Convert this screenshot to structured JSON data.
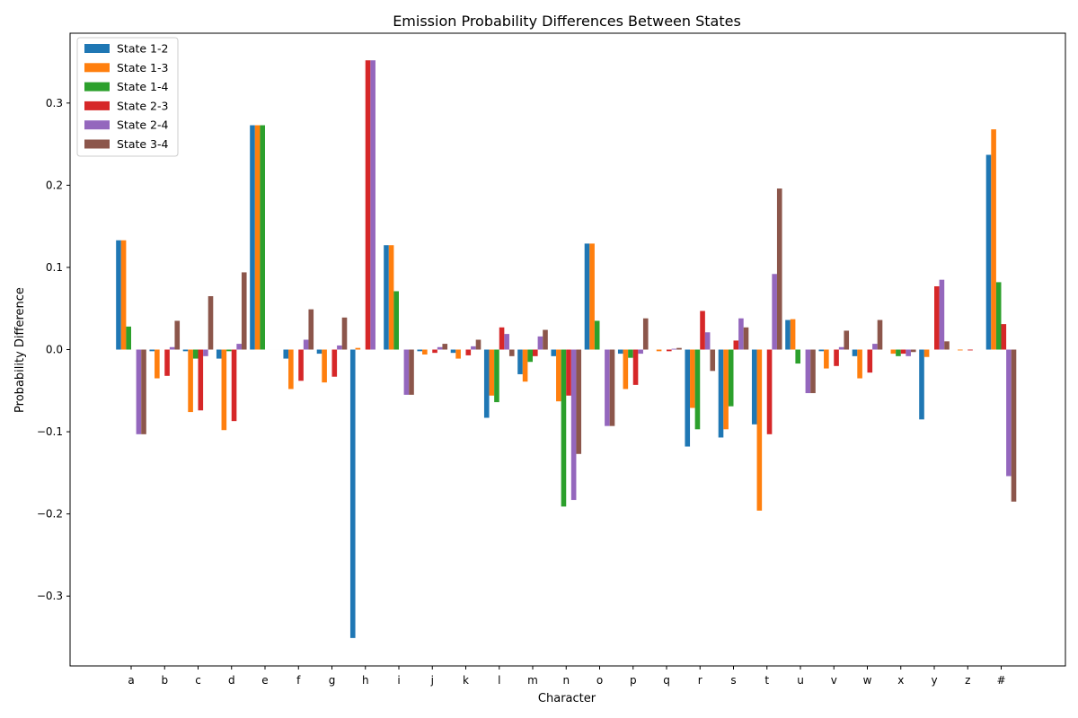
{
  "chart_data": {
    "type": "bar",
    "title": "Emission Probability Differences Between States",
    "xlabel": "Character",
    "ylabel": "Probability Difference",
    "ylim": [
      -0.385,
      0.385
    ],
    "yticks": [
      -0.3,
      -0.2,
      -0.1,
      0.0,
      0.1,
      0.2,
      0.3
    ],
    "ytick_labels": [
      "−0.3",
      "−0.2",
      "−0.1",
      "0.0",
      "0.1",
      "0.2",
      "0.3"
    ],
    "grid": false,
    "legend_position": "top-left",
    "categories": [
      "a",
      "b",
      "c",
      "d",
      "e",
      "f",
      "g",
      "h",
      "i",
      "j",
      "k",
      "l",
      "m",
      "n",
      "o",
      "p",
      "q",
      "r",
      "s",
      "t",
      "u",
      "v",
      "w",
      "x",
      "y",
      "z",
      "#"
    ],
    "series": [
      {
        "name": "State 1-2",
        "color": "#1f77b4",
        "values": [
          0.133,
          -0.002,
          -0.002,
          -0.011,
          0.273,
          -0.011,
          -0.005,
          -0.351,
          0.127,
          -0.002,
          -0.004,
          -0.083,
          -0.03,
          -0.008,
          0.129,
          -0.005,
          0.0,
          -0.118,
          -0.107,
          -0.091,
          0.036,
          -0.002,
          -0.008,
          0.0,
          -0.085,
          0.0,
          0.237
        ]
      },
      {
        "name": "State 1-3",
        "color": "#ff7f0e",
        "values": [
          0.133,
          -0.035,
          -0.076,
          -0.098,
          0.273,
          -0.048,
          -0.04,
          0.002,
          0.127,
          -0.006,
          -0.011,
          -0.056,
          -0.039,
          -0.063,
          0.129,
          -0.048,
          -0.002,
          -0.071,
          -0.097,
          -0.196,
          0.037,
          -0.023,
          -0.035,
          -0.005,
          -0.009,
          -0.001,
          0.268
        ]
      },
      {
        "name": "State 1-4",
        "color": "#2ca02c",
        "values": [
          0.028,
          0.0,
          -0.011,
          -0.002,
          0.273,
          0.0,
          0.0,
          0.0,
          0.071,
          0.0,
          0.0,
          -0.064,
          -0.015,
          -0.191,
          0.035,
          -0.01,
          0.0,
          -0.097,
          -0.069,
          0.0,
          -0.017,
          0.0,
          0.0,
          -0.008,
          0.0,
          0.0,
          0.082
        ]
      },
      {
        "name": "State 2-3",
        "color": "#d62728",
        "values": [
          0.0,
          -0.032,
          -0.074,
          -0.087,
          0.0,
          -0.038,
          -0.033,
          0.352,
          0.0,
          -0.004,
          -0.007,
          0.027,
          -0.008,
          -0.056,
          0.0,
          -0.043,
          -0.002,
          0.047,
          0.011,
          -0.103,
          0.0,
          -0.02,
          -0.028,
          -0.005,
          0.077,
          -0.001,
          0.031
        ]
      },
      {
        "name": "State 2-4",
        "color": "#9467bd",
        "values": [
          -0.103,
          0.003,
          -0.008,
          0.007,
          0.0,
          0.012,
          0.005,
          0.352,
          -0.055,
          0.003,
          0.004,
          0.019,
          0.016,
          -0.183,
          -0.093,
          -0.005,
          0.001,
          0.021,
          0.038,
          0.092,
          -0.053,
          0.003,
          0.007,
          -0.008,
          0.085,
          0.0,
          -0.154
        ]
      },
      {
        "name": "State 3-4",
        "color": "#8c564b",
        "values": [
          -0.103,
          0.035,
          0.065,
          0.094,
          0.0,
          0.049,
          0.039,
          0.0,
          -0.055,
          0.007,
          0.012,
          -0.008,
          0.024,
          -0.127,
          -0.093,
          0.038,
          0.002,
          -0.026,
          0.027,
          0.196,
          -0.053,
          0.023,
          0.036,
          -0.003,
          0.01,
          0.0,
          -0.185
        ]
      }
    ]
  }
}
